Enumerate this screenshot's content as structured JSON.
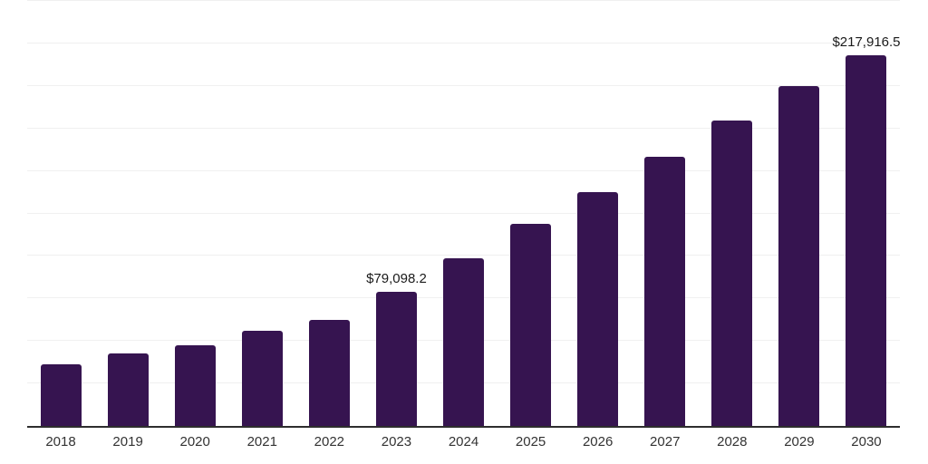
{
  "chart_data": {
    "type": "bar",
    "title": "",
    "xlabel": "",
    "ylabel": "",
    "categories": [
      "2018",
      "2019",
      "2020",
      "2021",
      "2022",
      "2023",
      "2024",
      "2025",
      "2026",
      "2027",
      "2028",
      "2029",
      "2030"
    ],
    "values": [
      36300,
      42600,
      47500,
      55900,
      62400,
      79098.2,
      98800,
      118900,
      137500,
      158300,
      179500,
      200100,
      217916.5
    ],
    "data_labels": [
      "",
      "",
      "",
      "",
      "",
      "$79,098.2",
      "",
      "",
      "",
      "",
      "",
      "",
      "$217,916.5"
    ],
    "ylim": [
      0,
      250000
    ],
    "gridline_count": 10,
    "grid": "horizontal",
    "legend": "none",
    "colors": {
      "bar": "#361450",
      "axis_line": "#2e2e2e",
      "gridline": "#f0f0f0",
      "tick_label": "#333333",
      "data_label": "#1a1a1a",
      "background": "#ffffff"
    }
  }
}
